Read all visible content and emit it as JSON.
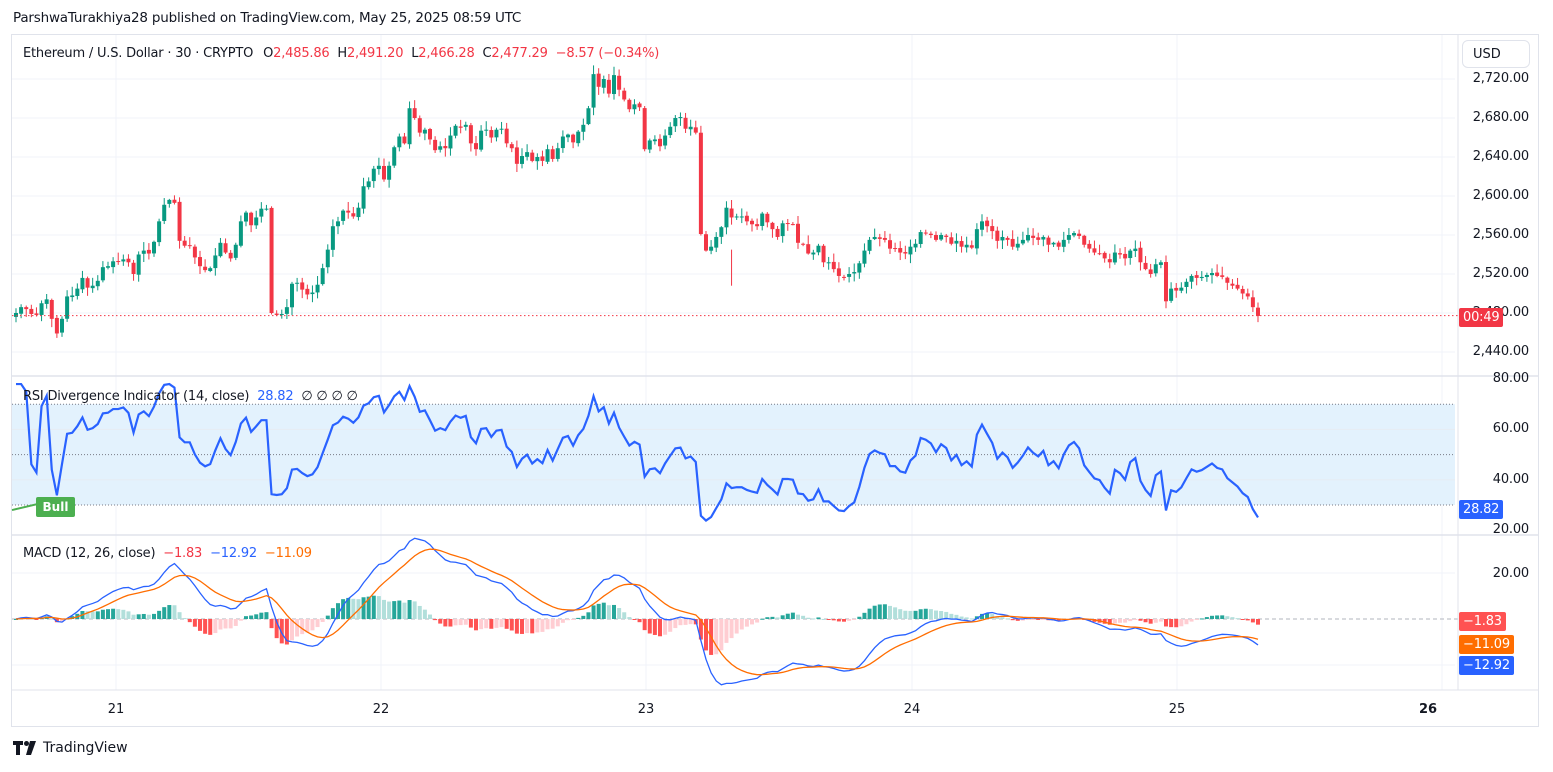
{
  "header": {
    "publish_line": "ParshwaTurakhiya28 published on TradingView.com, May 25, 2025 08:59 UTC"
  },
  "symbol": {
    "name": "Ethereum / U.S. Dollar · 30 · CRYPTO",
    "o_label": "O",
    "o_value": "2,485.86",
    "h_label": "H",
    "h_value": "2,491.20",
    "l_label": "L",
    "l_value": "2,466.28",
    "c_label": "C",
    "c_value": "2,477.29",
    "change": "−8.57 (−0.34%)"
  },
  "price_axis": {
    "currency_button": "USD",
    "ticks": [
      "2,720.00",
      "2,680.00",
      "2,640.00",
      "2,600.00",
      "2,560.00",
      "2,520.00",
      "2,480.00",
      "2,440.00"
    ],
    "countdown_tag": "00:49"
  },
  "rsi": {
    "title": "RSI Divergence Indicator (14, close)",
    "value": "28.82",
    "placeholders": "∅  ∅  ∅  ∅",
    "ticks": [
      "80.00",
      "60.00",
      "40.00",
      "20.00"
    ],
    "value_tag": "28.82",
    "divergence_label": "Bull"
  },
  "macd": {
    "title": "MACD (12, 26, close)",
    "histogram": "−1.83",
    "macd": "−12.92",
    "signal": "−11.09",
    "ticks": [
      "20.00"
    ],
    "tags": {
      "histogram": "−1.83",
      "signal": "−11.09",
      "macd": "−12.92"
    }
  },
  "time_axis": {
    "labels": [
      "21",
      "22",
      "23",
      "24",
      "25",
      "26"
    ]
  },
  "footer": {
    "brand": "TradingView"
  },
  "colors": {
    "up": "#089981",
    "down": "#f23645",
    "rsi_line": "#2962ff",
    "rsi_band": "#e3f2fd",
    "macd_line": "#2962ff",
    "signal_line": "#ff6d00",
    "hist_up_strong": "#26a69a",
    "hist_up_weak": "#b2dfdb",
    "hist_down_strong": "#ff5252",
    "hist_down_weak": "#ffcdd2"
  },
  "chart_data": [
    {
      "type": "candlestick",
      "title": "Ethereum / U.S. Dollar · 30 · CRYPTO",
      "xlabel": "",
      "ylabel": "USD",
      "x_ticks": [
        "21",
        "22",
        "23",
        "24",
        "25",
        "26"
      ],
      "ylim": [
        2425,
        2735
      ],
      "last": {
        "open": 2485.86,
        "high": 2491.2,
        "low": 2466.28,
        "close": 2477.29,
        "change": -8.57,
        "change_pct": -0.34
      },
      "closes": [
        2480,
        2486,
        2484,
        2479,
        2478,
        2490,
        2494,
        2474,
        2459,
        2474,
        2497,
        2498,
        2505,
        2516,
        2506,
        2508,
        2513,
        2527,
        2528,
        2533,
        2533,
        2535,
        2532,
        2520,
        2540,
        2544,
        2541,
        2553,
        2574,
        2591,
        2596,
        2593,
        2554,
        2549,
        2549,
        2537,
        2528,
        2524,
        2526,
        2539,
        2552,
        2542,
        2536,
        2550,
        2574,
        2583,
        2570,
        2578,
        2587,
        2587,
        2480,
        2478,
        2479,
        2486,
        2510,
        2511,
        2504,
        2499,
        2501,
        2509,
        2526,
        2545,
        2569,
        2574,
        2585,
        2583,
        2579,
        2588,
        2610,
        2615,
        2628,
        2631,
        2617,
        2631,
        2650,
        2661,
        2654,
        2690,
        2680,
        2665,
        2668,
        2658,
        2647,
        2651,
        2649,
        2662,
        2672,
        2670,
        2673,
        2654,
        2648,
        2667,
        2668,
        2660,
        2668,
        2669,
        2654,
        2649,
        2633,
        2641,
        2645,
        2636,
        2640,
        2636,
        2648,
        2638,
        2649,
        2661,
        2663,
        2655,
        2666,
        2673,
        2690,
        2725,
        2712,
        2720,
        2705,
        2724,
        2709,
        2699,
        2689,
        2694,
        2691,
        2648,
        2657,
        2658,
        2651,
        2662,
        2671,
        2680,
        2681,
        2669,
        2671,
        2665,
        2561,
        2544,
        2548,
        2558,
        2568,
        2588,
        2578,
        2579,
        2579,
        2574,
        2571,
        2569,
        2582,
        2573,
        2566,
        2558,
        2572,
        2572,
        2571,
        2552,
        2551,
        2541,
        2542,
        2549,
        2532,
        2532,
        2525,
        2518,
        2517,
        2520,
        2522,
        2531,
        2544,
        2555,
        2558,
        2556,
        2555,
        2546,
        2546,
        2542,
        2541,
        2548,
        2551,
        2563,
        2562,
        2560,
        2555,
        2560,
        2558,
        2551,
        2554,
        2548,
        2550,
        2547,
        2566,
        2574,
        2569,
        2564,
        2554,
        2558,
        2555,
        2548,
        2551,
        2555,
        2560,
        2557,
        2555,
        2558,
        2550,
        2552,
        2548,
        2555,
        2560,
        2562,
        2559,
        2550,
        2546,
        2542,
        2541,
        2536,
        2532,
        2542,
        2540,
        2536,
        2544,
        2546,
        2532,
        2525,
        2520,
        2530,
        2532,
        2492,
        2505,
        2503,
        2506,
        2512,
        2518,
        2516,
        2517,
        2519,
        2521,
        2518,
        2517,
        2511,
        2508,
        2505,
        2500,
        2497,
        2486,
        2477
      ]
    },
    {
      "type": "line",
      "title": "RSI Divergence Indicator (14, close)",
      "ylim": [
        20,
        80
      ],
      "bands": {
        "upper": 70,
        "middle": 50,
        "lower": 30
      },
      "last_value": 28.82,
      "annotations": [
        {
          "text": "Bull",
          "type": "bullish divergence"
        }
      ]
    },
    {
      "type": "line+bar",
      "title": "MACD (12, 26, close)",
      "series": [
        {
          "name": "Histogram",
          "last": -1.83
        },
        {
          "name": "MACD",
          "last": -12.92
        },
        {
          "name": "Signal",
          "last": -11.09
        }
      ],
      "y_ticks": [
        20
      ]
    }
  ]
}
